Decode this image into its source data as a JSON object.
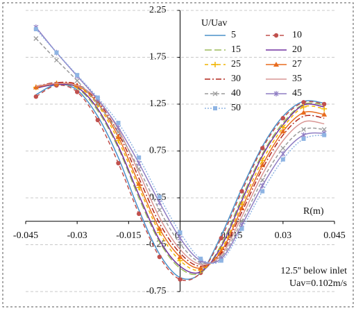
{
  "chart_data": {
    "type": "line",
    "y_axis_label": "U/Uav",
    "x_axis_label": "R(m)",
    "annotations": [
      "12.5'' below inlet",
      "Uav=0.102m/s"
    ],
    "xlim": [
      -0.045,
      0.045
    ],
    "xticks": [
      -0.045,
      -0.03,
      -0.015,
      0,
      0.015,
      0.03,
      0.045
    ],
    "ylim": [
      -0.75,
      2.25
    ],
    "yticks": [
      -0.75,
      -0.25,
      0.25,
      0.75,
      1.25,
      1.75,
      2.25
    ],
    "grid": true,
    "x": [
      -0.042,
      -0.036,
      -0.03,
      -0.024,
      -0.018,
      -0.012,
      -0.006,
      0,
      0.006,
      0.012,
      0.018,
      0.024,
      0.03,
      0.036,
      0.042
    ],
    "series": [
      {
        "name": "5",
        "color": "#4a90c8",
        "dash": "",
        "marker": "none",
        "values": [
          1.35,
          1.46,
          1.4,
          1.12,
          0.68,
          0.12,
          -0.35,
          -0.6,
          -0.55,
          -0.15,
          0.35,
          0.8,
          1.12,
          1.28,
          1.26
        ]
      },
      {
        "name": "10",
        "color": "#c0504d",
        "dash": "6 4",
        "marker": "circle",
        "values": [
          1.33,
          1.45,
          1.38,
          1.08,
          0.62,
          0.08,
          -0.38,
          -0.62,
          -0.55,
          -0.18,
          0.32,
          0.78,
          1.1,
          1.27,
          1.25
        ]
      },
      {
        "name": "15",
        "color": "#9bbb59",
        "dash": "10 4",
        "marker": "none",
        "values": [
          1.42,
          1.46,
          1.42,
          1.18,
          0.78,
          0.25,
          -0.22,
          -0.5,
          -0.55,
          -0.25,
          0.25,
          0.72,
          1.05,
          1.25,
          1.24
        ]
      },
      {
        "name": "20",
        "color": "#7030a0",
        "dash": "",
        "marker": "none",
        "values": [
          1.42,
          1.46,
          1.43,
          1.2,
          0.8,
          0.28,
          -0.2,
          -0.48,
          -0.54,
          -0.27,
          0.22,
          0.7,
          1.03,
          1.24,
          1.22
        ]
      },
      {
        "name": "25",
        "color": "#f0b400",
        "dash": "5 4",
        "marker": "plus",
        "values": [
          1.43,
          1.47,
          1.44,
          1.24,
          0.86,
          0.36,
          -0.12,
          -0.42,
          -0.52,
          -0.3,
          0.18,
          0.65,
          1.0,
          1.22,
          1.2
        ]
      },
      {
        "name": "27",
        "color": "#e86c1f",
        "dash": "",
        "marker": "triangle",
        "values": [
          1.43,
          1.47,
          1.45,
          1.26,
          0.9,
          0.4,
          -0.08,
          -0.38,
          -0.5,
          -0.32,
          0.14,
          0.6,
          0.96,
          1.16,
          1.14
        ]
      },
      {
        "name": "30",
        "color": "#b02418",
        "dash": "8 3 2 3",
        "marker": "none",
        "values": [
          1.44,
          1.48,
          1.46,
          1.28,
          0.94,
          0.46,
          -0.02,
          -0.34,
          -0.48,
          -0.34,
          0.1,
          0.56,
          0.92,
          1.12,
          1.1
        ]
      },
      {
        "name": "35",
        "color": "#d99694",
        "dash": "",
        "marker": "none",
        "values": [
          1.44,
          1.47,
          1.45,
          1.3,
          0.98,
          0.52,
          0.04,
          -0.3,
          -0.46,
          -0.36,
          0.05,
          0.5,
          0.86,
          1.06,
          1.04
        ]
      },
      {
        "name": "40",
        "color": "#9a9a9a",
        "dash": "5 3",
        "marker": "x",
        "values": [
          1.95,
          1.72,
          1.5,
          1.25,
          0.95,
          0.56,
          0.12,
          -0.24,
          -0.44,
          -0.38,
          0.0,
          0.44,
          0.78,
          0.98,
          0.98
        ]
      },
      {
        "name": "45",
        "color": "#8e7cc3",
        "dash": "",
        "marker": "star",
        "values": [
          2.07,
          1.8,
          1.55,
          1.3,
          1.0,
          0.62,
          0.2,
          -0.18,
          -0.42,
          -0.4,
          -0.04,
          0.38,
          0.72,
          0.92,
          0.94
        ]
      },
      {
        "name": "50",
        "color": "#8eb4e3",
        "dash": "2 2",
        "marker": "square",
        "values": [
          2.05,
          1.8,
          1.56,
          1.32,
          1.05,
          0.68,
          0.26,
          -0.12,
          -0.4,
          -0.42,
          -0.08,
          0.32,
          0.66,
          0.88,
          0.92
        ]
      }
    ]
  }
}
